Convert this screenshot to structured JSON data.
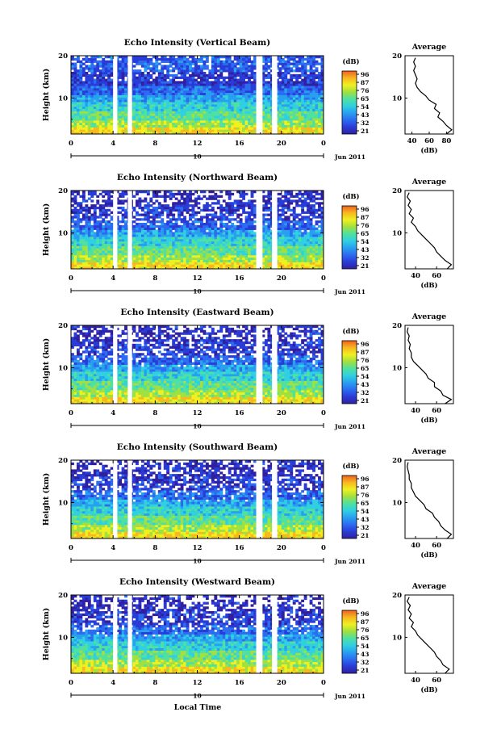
{
  "figure": {
    "xlabel": "Local Time",
    "ylabel": "Height (km)",
    "colorbar_unit": "(dB)",
    "avg_title": "Average",
    "avg_xlabel": "(dB)",
    "day_label": "10",
    "month_label": "Jun 2011",
    "colormap": [
      "#3020a0",
      "#2a3cd8",
      "#2c6cf0",
      "#28a0f0",
      "#30d0e0",
      "#50e0a0",
      "#a0e040",
      "#f0f020",
      "#f8b820",
      "#f06020"
    ]
  },
  "chart_data": [
    {
      "type": "heatmap",
      "title": "Echo Intensity (Vertical Beam)",
      "xlabel": "Local Time",
      "ylabel": "Height (km)",
      "x_ticks": [
        "0",
        "4",
        "8",
        "12",
        "16",
        "20",
        "0"
      ],
      "xlim": [
        0,
        24
      ],
      "ylim": [
        1.5,
        20
      ],
      "y_ticks": [
        "20",
        "10"
      ],
      "colorbar_ticks": [
        "96",
        "87",
        "76",
        "65",
        "54",
        "43",
        "32",
        "21"
      ],
      "data_gaps_hours": [
        [
          4.0,
          4.4
        ],
        [
          5.4,
          5.8
        ],
        [
          17.6,
          18.2
        ],
        [
          19.1,
          19.6
        ]
      ],
      "average_profile": {
        "x_ticks": [
          "40",
          "60",
          "80"
        ],
        "xlim": [
          32,
          88
        ],
        "heights_km": [
          1.5,
          2.5,
          3.5,
          4.5,
          5.5,
          6.5,
          7.5,
          8.5,
          9.5,
          10.5,
          11.5,
          12.5,
          13.5,
          14.5,
          15.5,
          16.5,
          17.5,
          18.5,
          19.5
        ],
        "values_db": [
          80,
          86,
          80,
          76,
          70,
          72,
          66,
          68,
          60,
          56,
          50,
          46,
          44,
          46,
          44,
          42,
          44,
          42,
          44
        ]
      }
    },
    {
      "type": "heatmap",
      "title": "Echo Intensity (Northward Beam)",
      "xlabel": "Local Time",
      "ylabel": "Height (km)",
      "x_ticks": [
        "0",
        "4",
        "8",
        "12",
        "16",
        "20",
        "0"
      ],
      "xlim": [
        0,
        24
      ],
      "ylim": [
        1.5,
        20
      ],
      "y_ticks": [
        "20",
        "10"
      ],
      "colorbar_ticks": [
        "96",
        "87",
        "76",
        "65",
        "54",
        "43",
        "32",
        "21"
      ],
      "data_gaps_hours": [
        [
          4.0,
          4.4
        ],
        [
          5.4,
          5.8
        ],
        [
          17.6,
          18.2
        ],
        [
          19.1,
          19.6
        ]
      ],
      "average_profile": {
        "x_ticks": [
          "40",
          "60"
        ],
        "xlim": [
          30,
          76
        ],
        "heights_km": [
          1.5,
          2.5,
          3.5,
          4.5,
          5.5,
          6.5,
          7.5,
          8.5,
          9.5,
          10.5,
          11.5,
          12.5,
          13.5,
          14.5,
          15.5,
          16.5,
          17.5,
          18.5,
          19.5
        ],
        "values_db": [
          70,
          74,
          68,
          64,
          60,
          58,
          54,
          50,
          46,
          42,
          40,
          36,
          38,
          34,
          36,
          33,
          35,
          32,
          34
        ]
      }
    },
    {
      "type": "heatmap",
      "title": "Echo Intensity (Eastward Beam)",
      "xlabel": "Local Time",
      "ylabel": "Height (km)",
      "x_ticks": [
        "0",
        "4",
        "8",
        "12",
        "16",
        "20",
        "0"
      ],
      "xlim": [
        0,
        24
      ],
      "ylim": [
        1.5,
        20
      ],
      "y_ticks": [
        "20",
        "10"
      ],
      "colorbar_ticks": [
        "96",
        "87",
        "76",
        "65",
        "54",
        "43",
        "32",
        "21"
      ],
      "data_gaps_hours": [
        [
          4.0,
          4.4
        ],
        [
          5.4,
          5.8
        ],
        [
          17.6,
          18.2
        ],
        [
          19.1,
          19.6
        ]
      ],
      "average_profile": {
        "x_ticks": [
          "40",
          "60"
        ],
        "xlim": [
          30,
          76
        ],
        "heights_km": [
          1.5,
          2.5,
          3.5,
          4.5,
          5.5,
          6.5,
          7.5,
          8.5,
          9.5,
          10.5,
          11.5,
          12.5,
          13.5,
          14.5,
          15.5,
          16.5,
          17.5,
          18.5,
          19.5
        ],
        "values_db": [
          68,
          74,
          66,
          64,
          58,
          58,
          52,
          50,
          46,
          42,
          38,
          36,
          36,
          34,
          35,
          33,
          34,
          32,
          33
        ]
      }
    },
    {
      "type": "heatmap",
      "title": "Echo Intensity (Southward Beam)",
      "xlabel": "Local Time",
      "ylabel": "Height (km)",
      "x_ticks": [
        "0",
        "4",
        "8",
        "12",
        "16",
        "20",
        "0"
      ],
      "xlim": [
        0,
        24
      ],
      "ylim": [
        1.5,
        20
      ],
      "y_ticks": [
        "20",
        "10"
      ],
      "colorbar_ticks": [
        "96",
        "87",
        "76",
        "65",
        "54",
        "43",
        "32",
        "21"
      ],
      "data_gaps_hours": [
        [
          4.0,
          4.4
        ],
        [
          5.4,
          5.8
        ],
        [
          17.6,
          18.2
        ],
        [
          19.1,
          19.6
        ]
      ],
      "average_profile": {
        "x_ticks": [
          "40",
          "60"
        ],
        "xlim": [
          30,
          76
        ],
        "heights_km": [
          1.5,
          2.5,
          3.5,
          4.5,
          5.5,
          6.5,
          7.5,
          8.5,
          9.5,
          10.5,
          11.5,
          12.5,
          13.5,
          14.5,
          15.5,
          16.5,
          17.5,
          18.5,
          19.5
        ],
        "values_db": [
          70,
          74,
          68,
          64,
          62,
          58,
          56,
          50,
          48,
          44,
          40,
          38,
          36,
          36,
          34,
          34,
          33,
          32,
          33
        ]
      }
    },
    {
      "type": "heatmap",
      "title": "Echo Intensity (Westward Beam)",
      "xlabel": "Local Time",
      "ylabel": "Height (km)",
      "x_ticks": [
        "0",
        "4",
        "8",
        "12",
        "16",
        "20",
        "0"
      ],
      "xlim": [
        0,
        24
      ],
      "ylim": [
        1.5,
        20
      ],
      "y_ticks": [
        "20",
        "10"
      ],
      "colorbar_ticks": [
        "96",
        "87",
        "76",
        "65",
        "54",
        "43",
        "32",
        "21"
      ],
      "data_gaps_hours": [
        [
          4.0,
          4.4
        ],
        [
          5.4,
          5.8
        ],
        [
          17.6,
          18.2
        ],
        [
          19.1,
          19.6
        ]
      ],
      "average_profile": {
        "x_ticks": [
          "40",
          "60"
        ],
        "xlim": [
          30,
          76
        ],
        "heights_km": [
          1.5,
          2.5,
          3.5,
          4.5,
          5.5,
          6.5,
          7.5,
          8.5,
          9.5,
          10.5,
          11.5,
          12.5,
          13.5,
          14.5,
          15.5,
          16.5,
          17.5,
          18.5,
          19.5
        ],
        "values_db": [
          68,
          72,
          66,
          64,
          60,
          58,
          54,
          50,
          46,
          42,
          40,
          36,
          38,
          34,
          36,
          33,
          35,
          32,
          34
        ]
      }
    }
  ]
}
